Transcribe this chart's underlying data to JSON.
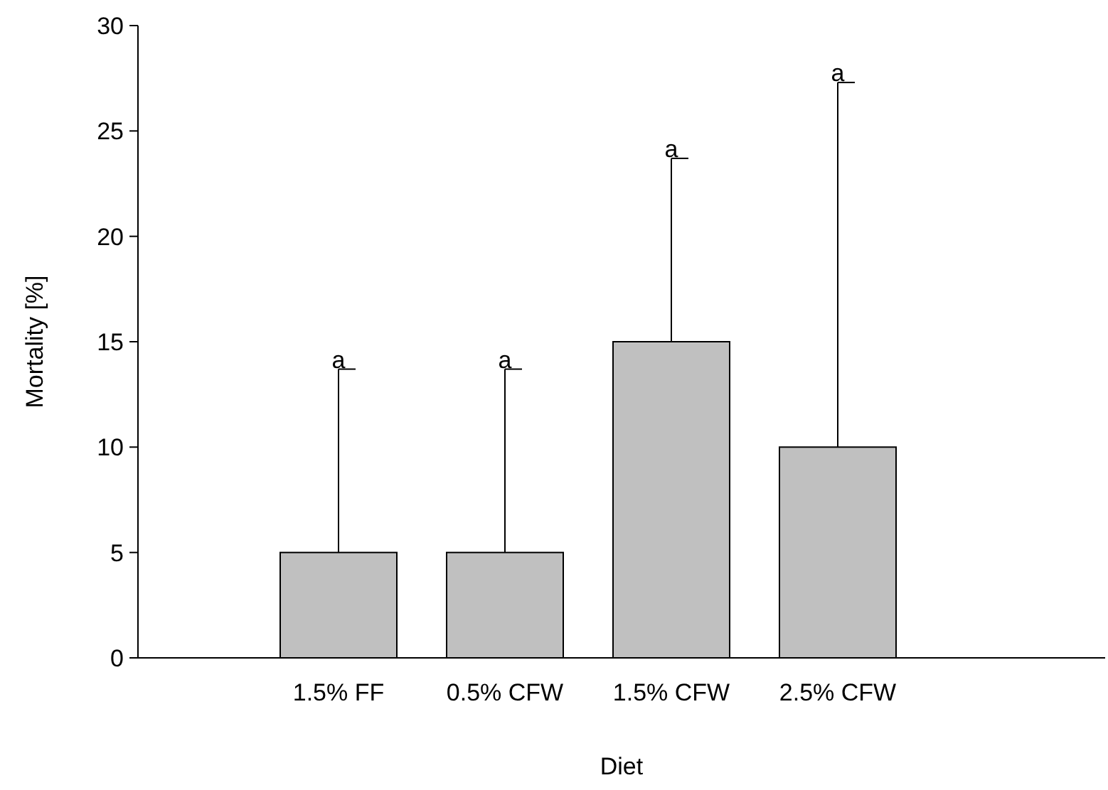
{
  "chart_data": {
    "type": "bar",
    "xlabel": "Diet",
    "ylabel": "Mortality [%]",
    "categories": [
      "1.5% FF",
      "0.5% CFW",
      "1.5% CFW",
      "2.5% CFW"
    ],
    "values": [
      5,
      5,
      15,
      10
    ],
    "errors": [
      [
        5,
        13.7
      ],
      [
        5,
        13.7
      ],
      [
        15,
        23.7
      ],
      [
        10,
        27.3
      ]
    ],
    "color": "#c0c0c0",
    "ylim": [
      0,
      30
    ],
    "yticks": [
      0,
      5,
      10,
      15,
      20,
      25,
      30
    ],
    "annotations": [
      {
        "text": "a",
        "x": "1.5% FF",
        "y": 13.7
      },
      {
        "text": "a",
        "x": "0.5% CFW",
        "y": 13.7
      },
      {
        "text": "a",
        "x": "1.5% CFW",
        "y": 23.7
      },
      {
        "text": "a",
        "x": "2.5% CFW",
        "y": 27.3
      }
    ]
  }
}
